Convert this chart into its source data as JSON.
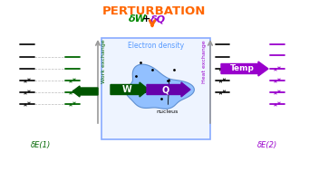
{
  "title": "PERTURBATION",
  "title_color": "#FF6600",
  "subtitle_dW": "δW",
  "subtitle_plus": "+",
  "subtitle_dQ": "δQ",
  "subtitle_w_color": "#008800",
  "subtitle_q_color": "#9900CC",
  "box_edge_color": "#88AAFF",
  "box_face_color": "#EEF4FF",
  "electron_density_label": "Electron density",
  "electron_density_color": "#5599FF",
  "blob_face_color": "#88BBFF",
  "blob_edge_color": "#5588CC",
  "nucleus_label": "nucleus",
  "W_label": "W",
  "Q_label": "Q",
  "W_color": "#005500",
  "Q_color": "#6600AA",
  "Temp_label": "Temp",
  "Temp_color": "#9900CC",
  "work_exchange_label": "Work exchange",
  "work_exchange_color": "#006600",
  "heat_exchange_label": "Heat exchange",
  "heat_exchange_color": "#9900CC",
  "dE1_label": "δE(1)",
  "dE1_color": "#006600",
  "dE2_label": "δE(2)",
  "dE2_color": "#9900CC",
  "arrow_orange": "#FF6600",
  "background": "#FFFFFF",
  "level_color_black": "#111111",
  "level_color_green": "#006600",
  "level_color_purple": "#9900CC",
  "gray_arrow_color": "#999999"
}
